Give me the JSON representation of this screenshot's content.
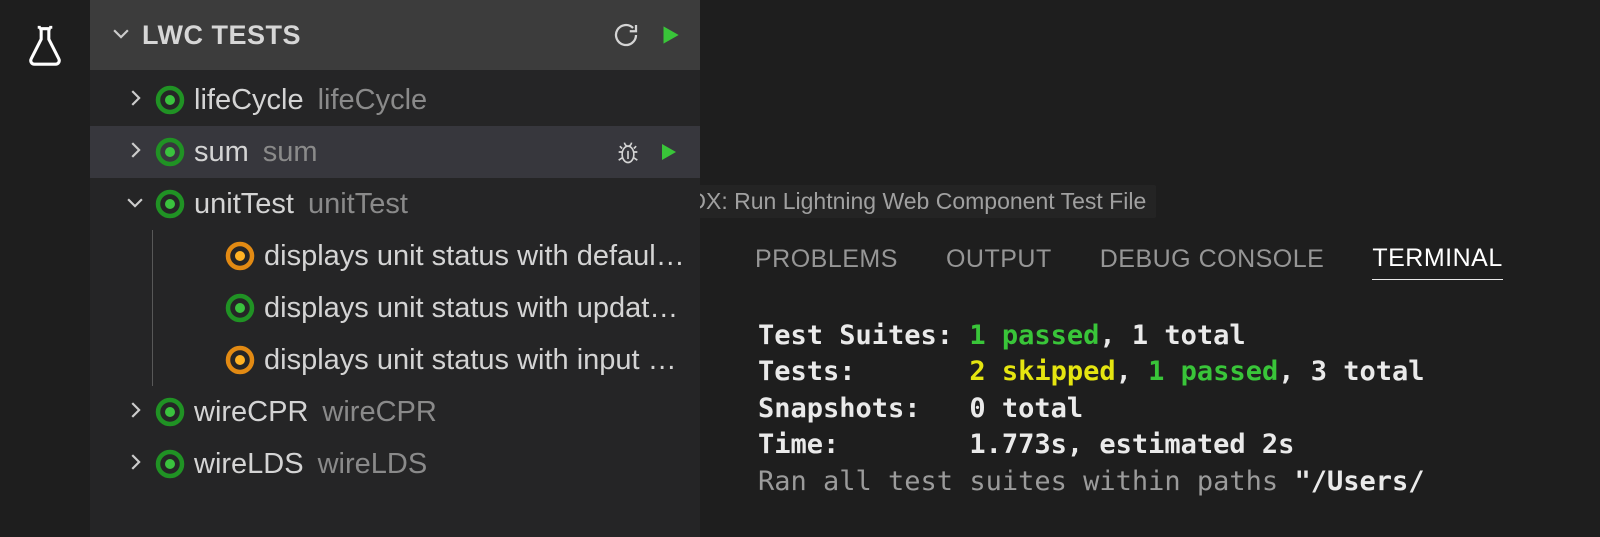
{
  "colors": {
    "bg": "#1e1e1e",
    "sidebar_bg": "#252526",
    "header_bg": "#3c3c3c",
    "row_hover": "#37373d",
    "text": "#d4d4d4",
    "text_dim": "#8a8a8a",
    "status_pass_stroke": "#209224",
    "status_pass_fill": "#3ac23e",
    "status_skip_stroke": "#e28a13",
    "status_skip_fill": "#ffb224",
    "play_fill": "#39c539",
    "term_green": "#39c539",
    "term_yellow": "#e5e510"
  },
  "activity": {
    "active_icon": "beaker-icon"
  },
  "sidebar": {
    "title": "LWC TESTS",
    "header_actions": {
      "refresh": "refresh-icon",
      "run_all": "play-icon"
    },
    "rows": [
      {
        "id": "lifeCycle",
        "depth": 0,
        "expanded": false,
        "status": "pass",
        "name": "lifeCycle",
        "sub": "lifeCycle",
        "ellipsis": false,
        "hovered": false,
        "has_chevron": true,
        "actions": []
      },
      {
        "id": "sum",
        "depth": 0,
        "expanded": false,
        "status": "pass",
        "name": "sum",
        "sub": "sum",
        "ellipsis": false,
        "hovered": true,
        "has_chevron": true,
        "actions": [
          "debug",
          "play"
        ]
      },
      {
        "id": "unitTest",
        "depth": 0,
        "expanded": true,
        "status": "pass",
        "name": "unitTest",
        "sub": "unitTest",
        "ellipsis": false,
        "hovered": false,
        "has_chevron": true,
        "actions": []
      },
      {
        "id": "ut1",
        "depth": 1,
        "status": "skip",
        "name": "displays unit status with defaul…",
        "ellipsis": true,
        "hovered": false,
        "has_chevron": false,
        "actions": []
      },
      {
        "id": "ut2",
        "depth": 1,
        "status": "pass",
        "name": "displays unit status with updat…",
        "ellipsis": true,
        "hovered": false,
        "has_chevron": false,
        "actions": []
      },
      {
        "id": "ut3",
        "depth": 1,
        "status": "skip",
        "name": "displays unit status with input …",
        "ellipsis": true,
        "hovered": false,
        "has_chevron": false,
        "actions": []
      },
      {
        "id": "wireCPR",
        "depth": 0,
        "expanded": false,
        "status": "pass",
        "name": "wireCPR",
        "sub": "wireCPR",
        "ellipsis": false,
        "hovered": false,
        "has_chevron": true,
        "actions": []
      },
      {
        "id": "wireLDS",
        "depth": 0,
        "expanded": false,
        "status": "pass",
        "name": "wireLDS",
        "sub": "wireLDS",
        "ellipsis": false,
        "hovered": false,
        "has_chevron": true,
        "actions": []
      }
    ]
  },
  "tooltip": "SFDX: Run Lightning Web Component Test File",
  "panel": {
    "tabs": [
      {
        "id": "problems",
        "label": "PROBLEMS",
        "active": false
      },
      {
        "id": "output",
        "label": "OUTPUT",
        "active": false
      },
      {
        "id": "debug",
        "label": "DEBUG CONSOLE",
        "active": false
      },
      {
        "id": "terminal",
        "label": "TERMINAL",
        "active": true
      }
    ],
    "terminal": {
      "lines": [
        {
          "label": "Test Suites:",
          "pad": 13,
          "segments": [
            {
              "text": "1 passed",
              "cls": "t-green"
            },
            {
              "text": ", 1 total",
              "cls": "t-white"
            }
          ]
        },
        {
          "label": "Tests:",
          "pad": 13,
          "segments": [
            {
              "text": "2 skipped",
              "cls": "t-yellow"
            },
            {
              "text": ", ",
              "cls": "t-white"
            },
            {
              "text": "1 passed",
              "cls": "t-green"
            },
            {
              "text": ", 3 total",
              "cls": "t-white"
            }
          ]
        },
        {
          "label": "Snapshots:",
          "pad": 13,
          "segments": [
            {
              "text": "0 total",
              "cls": "t-white"
            }
          ]
        },
        {
          "label": "Time:",
          "pad": 13,
          "segments": [
            {
              "text": "1.773s, estimated 2s",
              "cls": "t-white"
            }
          ]
        }
      ],
      "trailing": {
        "prefix": "Ran all test suites within paths ",
        "bold": "\"/Users/"
      }
    }
  }
}
